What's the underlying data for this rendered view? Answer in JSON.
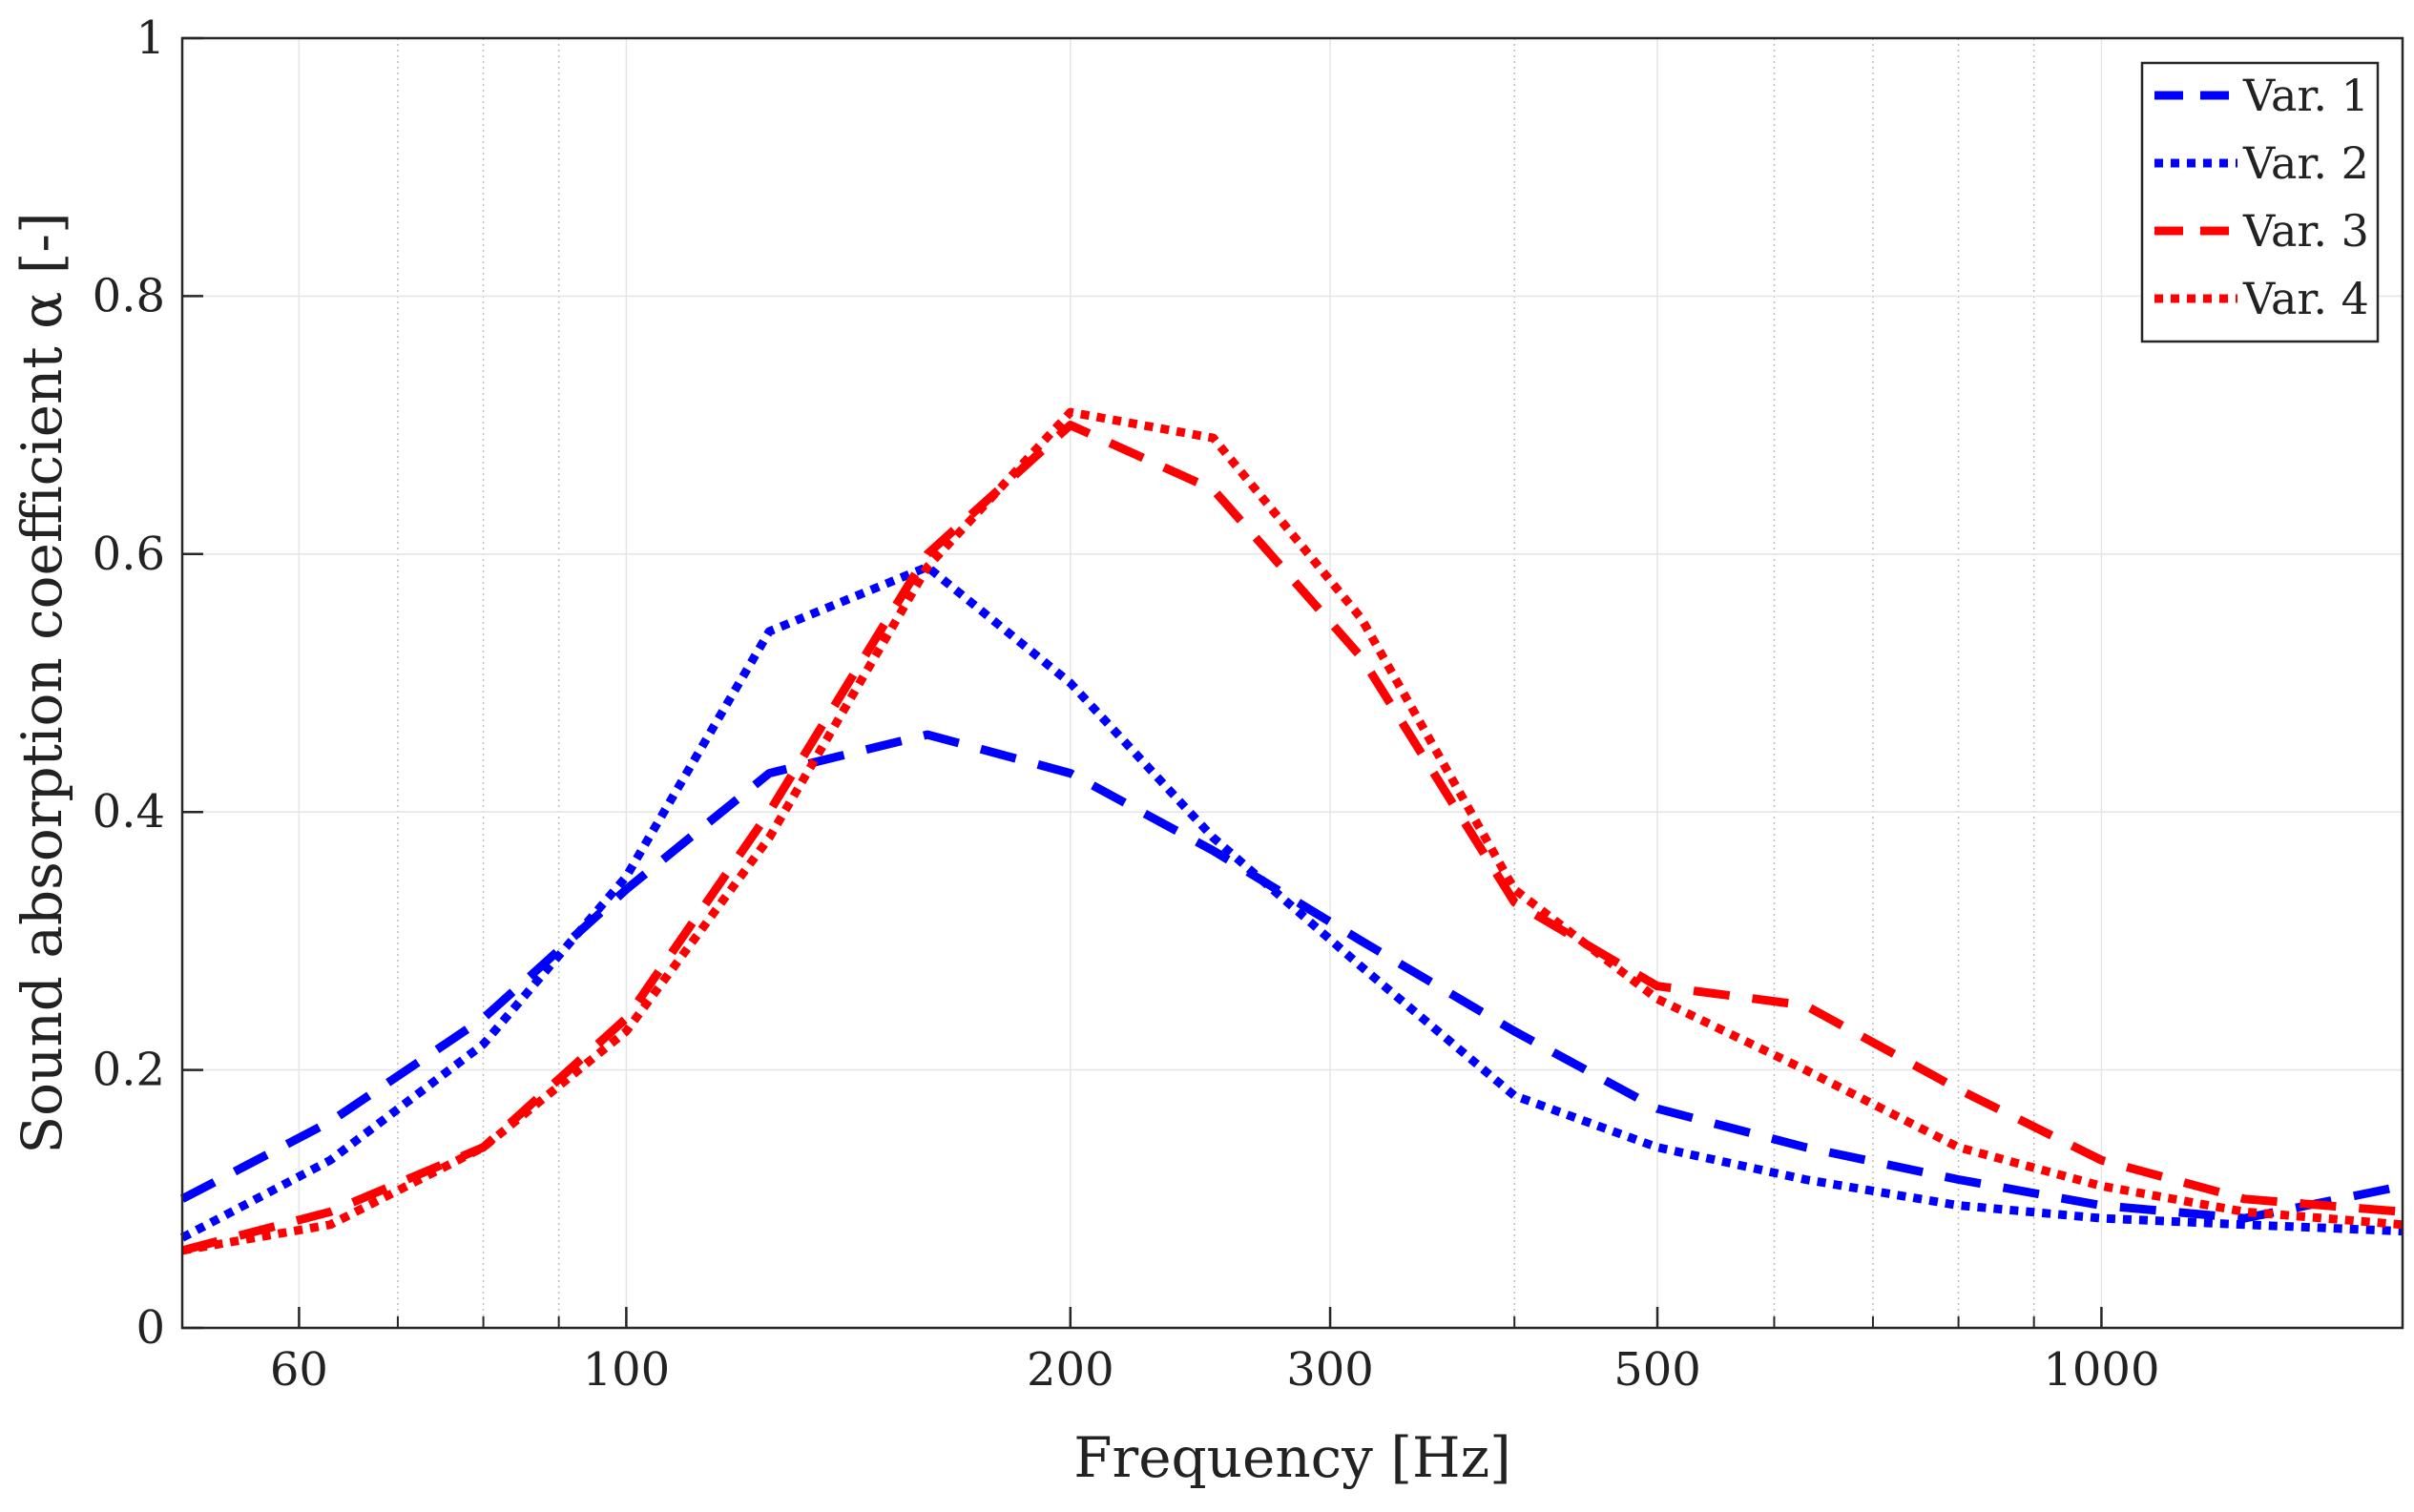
{
  "chart_data": {
    "type": "line",
    "title": "",
    "xlabel": "Frequency [Hz]",
    "ylabel": "Sound absorption coefficient α [-]",
    "xscale": "log",
    "xlim": [
      50,
      1600
    ],
    "ylim": [
      0,
      1
    ],
    "grid": true,
    "legend_position": "top-right",
    "x_ticks": [
      60,
      100,
      200,
      300,
      500,
      1000
    ],
    "x_tick_labels": [
      "60",
      "100",
      "200",
      "300",
      "500",
      "1000"
    ],
    "y_ticks": [
      0,
      0.2,
      0.4,
      0.6,
      0.8,
      1
    ],
    "y_tick_labels": [
      "0",
      "0.2",
      "0.4",
      "0.6",
      "0.8",
      "1"
    ],
    "x": [
      50,
      63,
      80,
      100,
      125,
      160,
      200,
      250,
      315,
      400,
      500,
      630,
      800,
      1000,
      1250,
      1600
    ],
    "series": [
      {
        "name": "Var. 1",
        "color": "#0000ff",
        "style": "dashed",
        "values": [
          0.1,
          0.16,
          0.24,
          0.34,
          0.43,
          0.46,
          0.43,
          0.37,
          0.3,
          0.23,
          0.17,
          0.14,
          0.115,
          0.095,
          0.085,
          0.11
        ]
      },
      {
        "name": "Var. 2",
        "color": "#0000ff",
        "style": "dotted",
        "values": [
          0.07,
          0.13,
          0.22,
          0.35,
          0.54,
          0.59,
          0.5,
          0.38,
          0.28,
          0.18,
          0.14,
          0.115,
          0.095,
          0.085,
          0.08,
          0.075
        ]
      },
      {
        "name": "Var. 3",
        "color": "#ff0000",
        "style": "dashed",
        "values": [
          0.06,
          0.09,
          0.14,
          0.24,
          0.4,
          0.6,
          0.7,
          0.65,
          0.52,
          0.33,
          0.265,
          0.25,
          0.185,
          0.13,
          0.1,
          0.09
        ]
      },
      {
        "name": "Var. 4",
        "color": "#ff0000",
        "style": "dotted",
        "values": [
          0.06,
          0.08,
          0.14,
          0.23,
          0.38,
          0.59,
          0.71,
          0.69,
          0.55,
          0.34,
          0.255,
          0.2,
          0.14,
          0.11,
          0.09,
          0.08
        ]
      }
    ]
  }
}
